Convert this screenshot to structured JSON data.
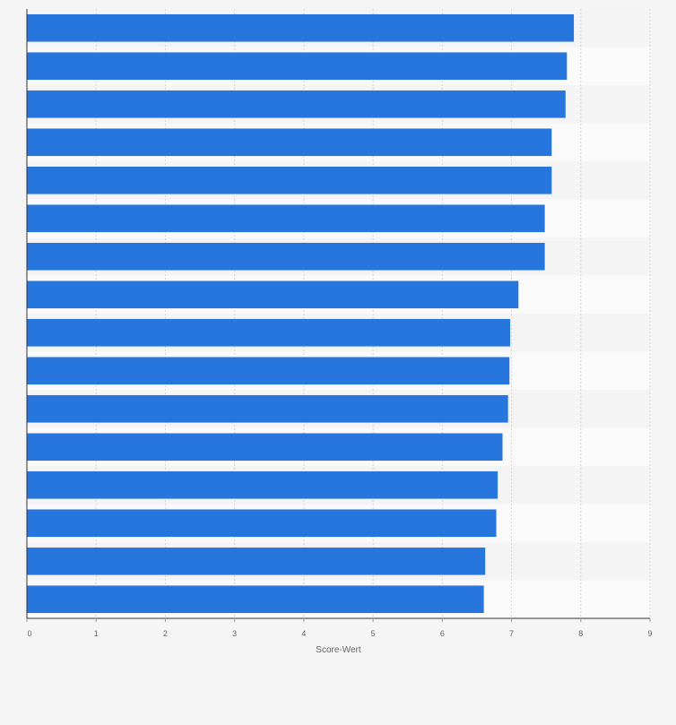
{
  "chart_data": {
    "type": "bar",
    "orientation": "horizontal",
    "title": "",
    "xlabel": "Score-Wert",
    "ylabel": "",
    "xlim": [
      0,
      9
    ],
    "xticks": [
      0,
      1,
      2,
      3,
      4,
      5,
      6,
      7,
      8,
      9
    ],
    "grid": true,
    "legend": "none",
    "bar_color": "#2776dd",
    "values": [
      7.9,
      7.8,
      7.78,
      7.58,
      7.58,
      7.48,
      7.48,
      7.1,
      6.98,
      6.97,
      6.95,
      6.87,
      6.8,
      6.78,
      6.62,
      6.6
    ]
  }
}
